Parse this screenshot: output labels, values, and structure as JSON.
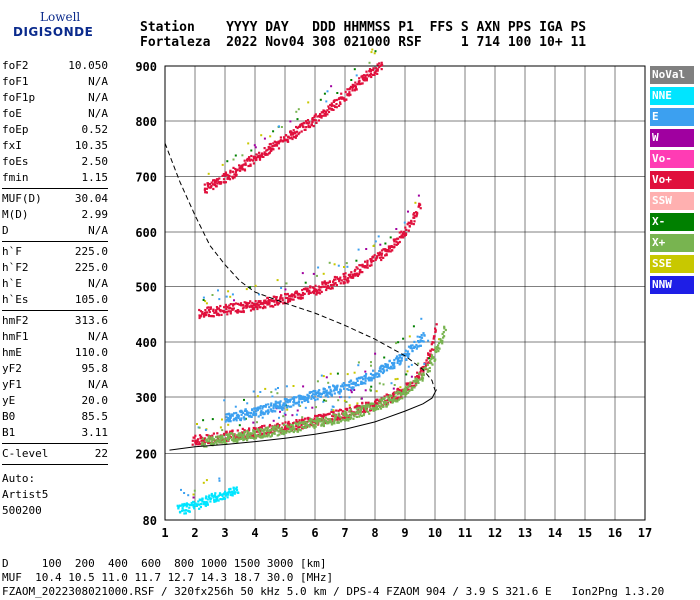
{
  "logo": {
    "line1": "Lowell",
    "line2": "DIGISONDE"
  },
  "header": {
    "line1": "Station    YYYY DAY   DDD HHMMSS P1  FFS S AXN PPS IGA PS",
    "line2": "Fortaleza  2022 Nov04 308 021000 RSF     1 714 100 10+ 11"
  },
  "params": {
    "group1": [
      {
        "label": "foF2",
        "value": "10.050"
      },
      {
        "label": "foF1",
        "value": "N/A"
      },
      {
        "label": "foF1p",
        "value": "N/A"
      },
      {
        "label": "foE",
        "value": "N/A"
      },
      {
        "label": "foEp",
        "value": "0.52"
      },
      {
        "label": "fxI",
        "value": "10.35"
      },
      {
        "label": "foEs",
        "value": "2.50"
      },
      {
        "label": "fmin",
        "value": "1.15"
      }
    ],
    "group2": [
      {
        "label": "MUF(D)",
        "value": "30.04"
      },
      {
        "label": "M(D)",
        "value": "2.99"
      },
      {
        "label": "D",
        "value": "N/A"
      }
    ],
    "group3": [
      {
        "label": "h`F",
        "value": "225.0"
      },
      {
        "label": "h`F2",
        "value": "225.0"
      },
      {
        "label": "h`E",
        "value": "N/A"
      },
      {
        "label": "h`Es",
        "value": "105.0"
      }
    ],
    "group4": [
      {
        "label": "hmF2",
        "value": "313.6"
      },
      {
        "label": "hmF1",
        "value": "N/A"
      },
      {
        "label": "hmE",
        "value": "110.0"
      },
      {
        "label": "yF2",
        "value": "95.8"
      },
      {
        "label": "yF1",
        "value": "N/A"
      },
      {
        "label": "yE",
        "value": "20.0"
      },
      {
        "label": "B0",
        "value": "85.5"
      },
      {
        "label": "B1",
        "value": "3.11"
      }
    ],
    "group5": [
      {
        "label": "C-level",
        "value": "22"
      }
    ],
    "auto": [
      "Auto:",
      "Artist5",
      "500200"
    ]
  },
  "legend": [
    {
      "label": "NoVal",
      "color": "#808080"
    },
    {
      "label": "NNE",
      "color": "#00e5ff"
    },
    {
      "label": "E",
      "color": "#3ca0f0"
    },
    {
      "label": "W",
      "color": "#a000a0"
    },
    {
      "label": "Vo-",
      "color": "#ff3cb4"
    },
    {
      "label": "Vo+",
      "color": "#e0103c"
    },
    {
      "label": "SSW",
      "color": "#ffb0b0"
    },
    {
      "label": "X-",
      "color": "#008000"
    },
    {
      "label": "X+",
      "color": "#78b450"
    },
    {
      "label": "SSE",
      "color": "#c8c800"
    },
    {
      "label": "NNW",
      "color": "#1e1ee6"
    }
  ],
  "footer": {
    "line1": "D     100  200  400  600  800 1000 1500 3000 [km]",
    "line2": "MUF  10.4 10.5 11.0 11.7 12.7 14.3 18.7 30.0 [MHz]",
    "line3": "FZAOM_2022308021000.RSF / 320fx256h 50 kHz 5.0 km / DPS-4 FZAOM 904 / 3.9 S 321.6 E   Ion2Png 1.3.20"
  },
  "chart_data": {
    "type": "scatter",
    "x_ticks": [
      "1",
      "2",
      "3",
      "4",
      "5",
      "6",
      "7",
      "8",
      "9",
      "10",
      "11",
      "12",
      "13",
      "14",
      "15",
      "16",
      "17"
    ],
    "y_ticks": [
      "80",
      "200",
      "300",
      "400",
      "500",
      "600",
      "700",
      "800",
      "900"
    ],
    "xlim": [
      1,
      17
    ],
    "ylim_labels": [
      "80",
      "900"
    ],
    "grid": true,
    "traces": [
      {
        "name": "F2 O-trace (Vo+)",
        "color": "#e0103c",
        "points": [
          [
            1.9,
            225
          ],
          [
            2.5,
            228
          ],
          [
            3,
            232
          ],
          [
            4,
            240
          ],
          [
            5,
            249
          ],
          [
            6,
            260
          ],
          [
            7,
            273
          ],
          [
            7.5,
            282
          ],
          [
            8,
            290
          ],
          [
            8.5,
            300
          ],
          [
            9,
            316
          ],
          [
            9.3,
            330
          ],
          [
            9.6,
            352
          ],
          [
            9.8,
            378
          ],
          [
            9.95,
            410
          ],
          [
            10.05,
            440
          ]
        ]
      },
      {
        "name": "F2 X-trace (X+)",
        "color": "#78b450",
        "points": [
          [
            2.2,
            222
          ],
          [
            3,
            228
          ],
          [
            4,
            236
          ],
          [
            5,
            245
          ],
          [
            6,
            256
          ],
          [
            7,
            268
          ],
          [
            8,
            285
          ],
          [
            8.8,
            305
          ],
          [
            9.4,
            332
          ],
          [
            9.8,
            360
          ],
          [
            10.1,
            395
          ],
          [
            10.3,
            425
          ]
        ]
      },
      {
        "name": "F2 second hop (Vo+)",
        "color": "#e0103c",
        "points": [
          [
            2.1,
            453
          ],
          [
            3,
            460
          ],
          [
            4,
            468
          ],
          [
            5,
            480
          ],
          [
            6,
            496
          ],
          [
            7,
            518
          ],
          [
            7.5,
            534
          ],
          [
            8,
            552
          ],
          [
            8.5,
            575
          ],
          [
            9,
            605
          ],
          [
            9.3,
            630
          ],
          [
            9.5,
            655
          ]
        ]
      },
      {
        "name": "F2 third hop (Vo+)",
        "color": "#e0103c",
        "points": [
          [
            2.3,
            680
          ],
          [
            3,
            700
          ],
          [
            4,
            735
          ],
          [
            5,
            770
          ],
          [
            6,
            805
          ],
          [
            6.8,
            840
          ],
          [
            7.4,
            870
          ],
          [
            7.8,
            890
          ],
          [
            8.2,
            900
          ]
        ]
      },
      {
        "name": "Oblique echoes (E)",
        "color": "#3ca0f0",
        "points": [
          [
            3,
            264
          ],
          [
            4,
            275
          ],
          [
            5,
            290
          ],
          [
            6,
            305
          ],
          [
            7,
            320
          ],
          [
            7.6,
            332
          ],
          [
            8,
            345
          ],
          [
            8.5,
            360
          ],
          [
            9,
            378
          ],
          [
            9.3,
            395
          ],
          [
            9.6,
            410
          ]
        ]
      },
      {
        "name": "Es echoes (NNE)",
        "color": "#00e5ff",
        "points": [
          [
            1.4,
            100
          ],
          [
            1.8,
            105
          ],
          [
            2.2,
            112
          ],
          [
            2.6,
            122
          ],
          [
            3,
            128
          ],
          [
            3.4,
            133
          ]
        ]
      }
    ],
    "profile": {
      "name": "Electron density profile",
      "color": "#000000",
      "points": [
        [
          1.15,
          206
        ],
        [
          2,
          212
        ],
        [
          3,
          216
        ],
        [
          4,
          221
        ],
        [
          5,
          227
        ],
        [
          6,
          234
        ],
        [
          7,
          243
        ],
        [
          8,
          256
        ],
        [
          9,
          275
        ],
        [
          9.6,
          288
        ],
        [
          9.9,
          298
        ],
        [
          10.05,
          313.6
        ]
      ]
    },
    "muf_curve": {
      "name": "MUF curve",
      "color": "#000000",
      "dashed": true,
      "points": [
        [
          1,
          760
        ],
        [
          1.5,
          690
        ],
        [
          2,
          630
        ],
        [
          2.5,
          575
        ],
        [
          3,
          540
        ],
        [
          3.5,
          510
        ],
        [
          4,
          490
        ],
        [
          5,
          470
        ],
        [
          6,
          452
        ],
        [
          7,
          430
        ],
        [
          8,
          405
        ],
        [
          9,
          375
        ],
        [
          9.6,
          350
        ],
        [
          9.9,
          330
        ],
        [
          10,
          312
        ]
      ]
    }
  }
}
